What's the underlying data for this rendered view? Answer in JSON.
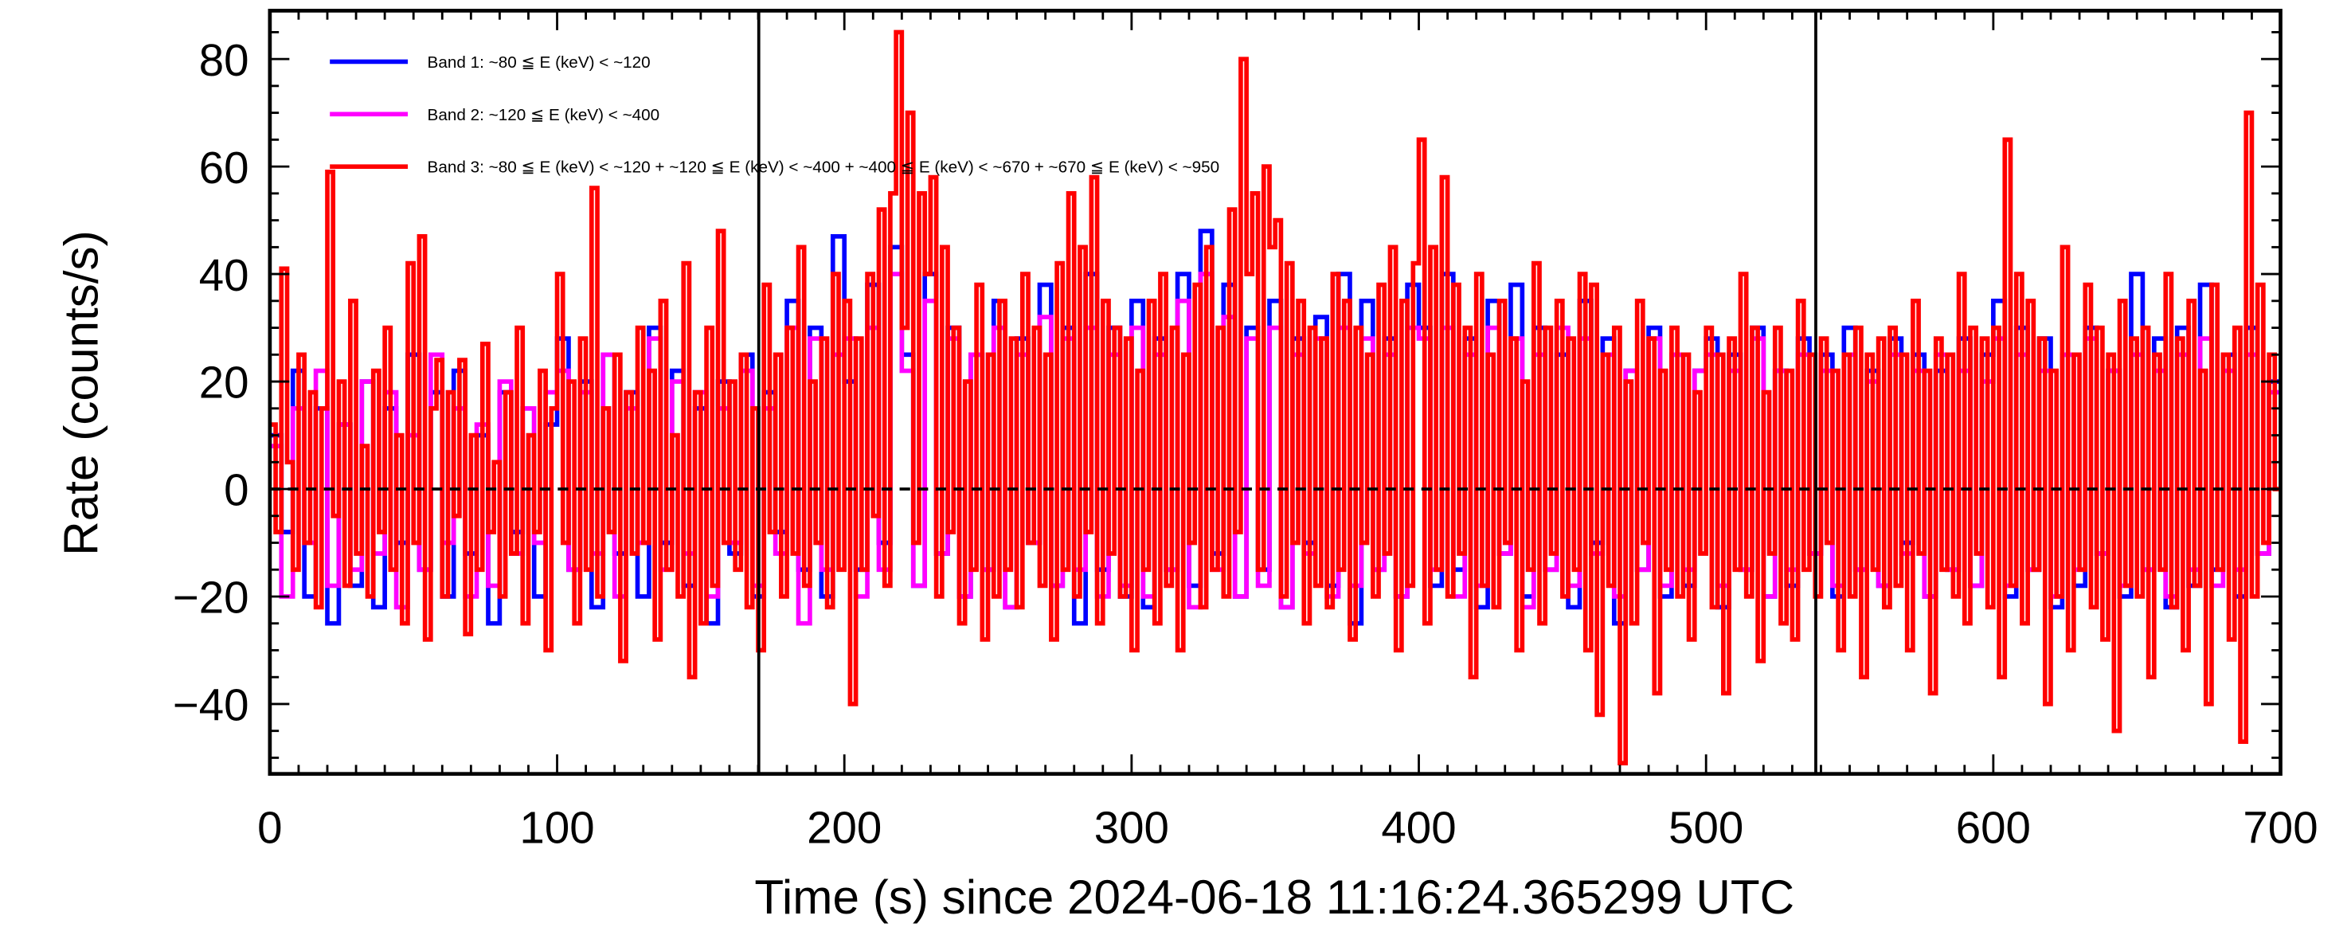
{
  "chart_data": {
    "type": "line",
    "style": "histogram-steps",
    "title": "",
    "xlabel": "Time (s) since 2024-06-18 11:16:24.365299 UTC",
    "ylabel": "Rate (counts/s)",
    "xlim": [
      0,
      700
    ],
    "ylim": [
      -53,
      89
    ],
    "xticks": [
      "0",
      "100",
      "200",
      "300",
      "400",
      "500",
      "600",
      "700"
    ],
    "xtick_values": [
      0,
      100,
      200,
      300,
      400,
      500,
      600,
      700
    ],
    "yticks": [
      "−40",
      "−20",
      "0",
      "20",
      "40",
      "60",
      "80"
    ],
    "ytick_values": [
      -40,
      -20,
      0,
      20,
      40,
      60,
      80
    ],
    "grid": false,
    "legend_position": "top-left",
    "reference_lines": {
      "horizontal_dashed_y": 0,
      "vertical_x": [
        170.2,
        538.2
      ]
    },
    "series": [
      {
        "name": "Band 1: ~80 ≦ E (keV) < ~120",
        "color": "#0000ff",
        "bin_width": 4,
        "values": [
          10,
          -8,
          22,
          -20,
          15,
          -25,
          12,
          -18,
          20,
          -22,
          15,
          -10,
          25,
          -15,
          18,
          -20,
          22,
          -12,
          10,
          -25,
          18,
          -8,
          15,
          -20,
          12,
          28,
          -15,
          20,
          -22,
          25,
          -12,
          18,
          -20,
          30,
          -10,
          22,
          -18,
          15,
          -25,
          20,
          -12,
          25,
          -20,
          18,
          -8,
          35,
          -15,
          30,
          -20,
          47,
          20,
          -15,
          38,
          -10,
          45,
          25,
          -18,
          40,
          -12,
          30,
          -20,
          25,
          -15,
          35,
          -22,
          28,
          -10,
          38,
          -18,
          30,
          -25,
          40,
          -15,
          30,
          -20,
          35,
          -22,
          28,
          -15,
          40,
          -18,
          48,
          -12,
          38,
          -20,
          30,
          -15,
          35,
          -22,
          28,
          -10,
          32,
          -18,
          40,
          -25,
          35,
          -15,
          28,
          -20,
          38,
          30,
          -18,
          40,
          -15,
          28,
          -22,
          35,
          -12,
          38,
          -20,
          30,
          -15,
          25,
          -22,
          35,
          -10,
          28,
          -25,
          22,
          -15,
          30,
          -20,
          25,
          -18,
          22,
          28,
          -22,
          25,
          -15,
          30,
          -20,
          22,
          -18,
          28,
          -12,
          25,
          -20,
          30,
          -15,
          22,
          -18,
          28,
          -10,
          25,
          -20,
          22,
          -15,
          28,
          -18,
          25,
          35,
          -20,
          30,
          -15,
          28,
          -22,
          25,
          -18,
          30,
          -12,
          22,
          -20,
          40,
          -15,
          28,
          -22,
          30,
          -18,
          38,
          -15,
          25,
          -20,
          30,
          -12,
          20
        ]
      },
      {
        "name": "Band 2: ~120 ≦ E (keV) < ~400",
        "color": "#ff00ff",
        "bin_width": 4,
        "values": [
          8,
          -20,
          15,
          -10,
          22,
          -18,
          12,
          -15,
          20,
          -12,
          18,
          -22,
          10,
          -15,
          25,
          -10,
          15,
          -20,
          12,
          -18,
          20,
          -12,
          15,
          -10,
          18,
          22,
          -15,
          18,
          -12,
          25,
          -20,
          15,
          -10,
          28,
          -15,
          20,
          -12,
          18,
          -20,
          15,
          -10,
          22,
          -18,
          15,
          -12,
          30,
          -25,
          28,
          -15,
          25,
          28,
          -20,
          30,
          -15,
          40,
          22,
          -18,
          35,
          -12,
          28,
          -20,
          25,
          -15,
          30,
          -22,
          25,
          -10,
          32,
          -18,
          28,
          -15,
          30,
          -20,
          25,
          -18,
          30,
          -20,
          25,
          -15,
          35,
          -22,
          40,
          -15,
          32,
          -20,
          28,
          -18,
          30,
          -22,
          25,
          -12,
          28,
          -20,
          30,
          -18,
          28,
          -15,
          25,
          -20,
          30,
          28,
          -15,
          30,
          -20,
          25,
          -18,
          30,
          -12,
          28,
          -22,
          25,
          -15,
          30,
          -18,
          28,
          -12,
          25,
          -20,
          22,
          -15,
          28,
          -18,
          25,
          -15,
          22,
          25,
          -18,
          22,
          -15,
          28,
          -20,
          22,
          -15,
          25,
          -12,
          22,
          -18,
          25,
          -15,
          20,
          -18,
          25,
          -12,
          22,
          -20,
          25,
          -15,
          22,
          -18,
          20,
          28,
          -18,
          25,
          -15,
          22,
          -20,
          25,
          -15,
          28,
          -12,
          22,
          -18,
          25,
          -15,
          22,
          -20,
          25,
          -15,
          28,
          -18,
          22,
          -15,
          25,
          -12,
          18
        ]
      },
      {
        "name": "Band 3: ~80 ≦ E (keV) < ~120 + ~120 ≦ E (keV) < ~400 + ~400 ≦ E (keV) < ~670 + ~670 ≦ E (keV) < ~950",
        "color": "#ff0000",
        "bin_width": 2,
        "values": [
          12,
          -8,
          41,
          5,
          -15,
          25,
          -10,
          18,
          -22,
          15,
          59,
          -5,
          20,
          -18,
          35,
          -12,
          8,
          -20,
          22,
          -8,
          30,
          -15,
          10,
          -25,
          42,
          -10,
          47,
          -28,
          15,
          24,
          -20,
          18,
          -5,
          24,
          -27,
          10,
          -15,
          27,
          -8,
          5,
          -20,
          18,
          -12,
          30,
          -25,
          10,
          -8,
          22,
          -30,
          15,
          40,
          -10,
          20,
          -25,
          28,
          -15,
          56,
          -20,
          15,
          -8,
          25,
          -32,
          18,
          -12,
          30,
          -10,
          22,
          -28,
          35,
          -15,
          10,
          -20,
          42,
          -35,
          18,
          -25,
          30,
          -18,
          48,
          -10,
          20,
          -15,
          25,
          -22,
          15,
          -30,
          38,
          -8,
          25,
          -20,
          30,
          -12,
          45,
          -18,
          20,
          -10,
          28,
          -22,
          40,
          -15,
          35,
          -40,
          28,
          -15,
          40,
          -5,
          52,
          -18,
          55,
          85,
          30,
          70,
          -10,
          55,
          40,
          58,
          -20,
          45,
          -8,
          30,
          -25,
          20,
          -15,
          38,
          -28,
          25,
          -20,
          35,
          -15,
          28,
          -22,
          40,
          -10,
          30,
          -18,
          25,
          -28,
          42,
          -15,
          55,
          -20,
          45,
          -8,
          58,
          -25,
          35,
          -12,
          30,
          -20,
          28,
          -30,
          22,
          -15,
          35,
          -25,
          40,
          -18,
          30,
          -30,
          25,
          -10,
          38,
          -22,
          45,
          -15,
          30,
          -20,
          52,
          -8,
          80,
          40,
          55,
          -15,
          60,
          45,
          50,
          -20,
          42,
          -10,
          35,
          -25,
          30,
          -18,
          28,
          -22,
          40,
          -15,
          35,
          -28,
          30,
          -10,
          25,
          -20,
          38,
          -12,
          45,
          -30,
          35,
          -18,
          42,
          65,
          -25,
          45,
          -15,
          58,
          -20,
          38,
          -12,
          30,
          -35,
          40,
          -18,
          25,
          -22,
          35,
          -10,
          28,
          -30,
          20,
          -15,
          42,
          -25,
          30,
          -12,
          35,
          -20,
          28,
          -15,
          40,
          -30,
          38,
          -42,
          25,
          -18,
          30,
          -51,
          20,
          -25,
          35,
          -10,
          28,
          -38,
          22,
          -15,
          30,
          -20,
          25,
          -28,
          18,
          -12,
          30,
          -22,
          25,
          -38,
          28,
          -15,
          40,
          -20,
          30,
          -32,
          18,
          -12,
          30,
          -25,
          22,
          -28,
          35,
          -15,
          25,
          -20,
          28,
          -10,
          22,
          -30,
          25,
          -20,
          30,
          -35,
          25,
          -15,
          28,
          -22,
          30,
          -18,
          25,
          -30,
          35,
          -12,
          22,
          -38,
          28,
          -15,
          25,
          -20,
          40,
          -25,
          30,
          -12,
          28,
          -22,
          30,
          -35,
          65,
          -18,
          40,
          -25,
          35,
          -15,
          28,
          -40,
          22,
          -20,
          45,
          -30,
          25,
          -15,
          38,
          -22,
          30,
          -28,
          25,
          -45,
          35,
          -18,
          28,
          -20,
          30,
          -35,
          25,
          -15,
          40,
          -22,
          28,
          -30,
          35,
          -18,
          22,
          -40,
          38,
          -15,
          25,
          -28,
          30,
          -47,
          70,
          -20,
          38,
          -10,
          25,
          0
        ]
      }
    ]
  }
}
